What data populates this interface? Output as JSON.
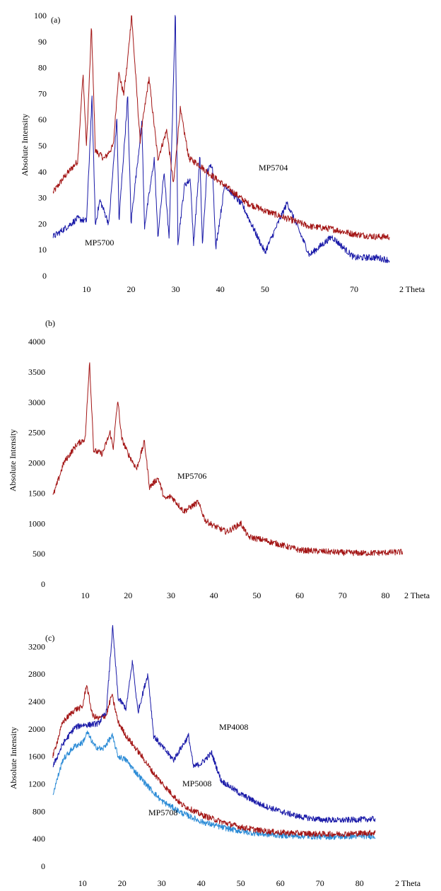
{
  "chart_data": [
    {
      "type": "line",
      "panel_label": "(a)",
      "ylabel": "Absolute Intensity",
      "xlabel": "2 Theta",
      "xlim": [
        2,
        83
      ],
      "ylim": [
        0,
        100
      ],
      "x_ticks": [
        "10",
        "20",
        "30",
        "40",
        "50",
        "70"
      ],
      "y_ticks": [
        "0",
        "10",
        "20",
        "30",
        "40",
        "50",
        "60",
        "70",
        "80",
        "90",
        "100"
      ],
      "grid": false,
      "series": [
        {
          "name": "MP5704",
          "color": "#a31515",
          "x": [
            2.5,
            5,
            8,
            9.2,
            10,
            11.1,
            12,
            14,
            16,
            17.2,
            18.3,
            19,
            20.1,
            22,
            24,
            26,
            28,
            29.5,
            31,
            33,
            35,
            37,
            40,
            43,
            46,
            50,
            55,
            60,
            65,
            70,
            75,
            78
          ],
          "y": [
            32,
            38,
            44,
            77,
            50,
            95,
            48,
            45,
            50,
            78,
            70,
            79,
            100,
            52,
            76,
            45,
            56,
            35,
            64,
            45,
            43,
            40,
            36,
            32,
            28,
            25,
            22,
            19,
            18,
            16,
            15,
            15
          ]
        },
        {
          "name": "MP5700",
          "color": "#1a1aa8",
          "x": [
            2.5,
            5,
            8,
            10,
            11.2,
            12,
            13,
            15,
            16.8,
            17.3,
            19.2,
            20,
            22.4,
            23,
            25.2,
            26,
            27.4,
            28.5,
            29.9,
            30.5,
            32,
            33.3,
            34,
            35.4,
            36,
            37,
            38.2,
            39,
            41,
            45,
            50,
            55,
            60,
            65,
            70,
            75,
            78
          ],
          "y": [
            15,
            18,
            22,
            21,
            68,
            20,
            29,
            20,
            60,
            22,
            68,
            21,
            59,
            19,
            45,
            15,
            40,
            14,
            100,
            13,
            35,
            37,
            12,
            45,
            12,
            40,
            43,
            11,
            35,
            27,
            9,
            28,
            8,
            15,
            7,
            7,
            6
          ]
        }
      ]
    },
    {
      "type": "line",
      "panel_label": "(b)",
      "ylabel": "Absolute Intensity",
      "xlabel": "2 Theta",
      "xlim": [
        2,
        87
      ],
      "ylim": [
        0,
        4000
      ],
      "x_ticks": [
        "10",
        "20",
        "30",
        "40",
        "50",
        "60",
        "70",
        "80"
      ],
      "y_ticks": [
        "0",
        "500",
        "1000",
        "1500",
        "2000",
        "2500",
        "3000",
        "3500",
        "4000"
      ],
      "grid": false,
      "series": [
        {
          "name": "MP5706",
          "color": "#a31515",
          "x": [
            2.5,
            5,
            8,
            10,
            11,
            12,
            14,
            15.8,
            16.5,
            17.6,
            18.5,
            20,
            22,
            23.8,
            25,
            27,
            28.5,
            30,
            33,
            36.3,
            38,
            40,
            43,
            46.3,
            48,
            52,
            57,
            60,
            65,
            70,
            75,
            80,
            84
          ],
          "y": [
            1450,
            2000,
            2300,
            2400,
            3650,
            2200,
            2150,
            2500,
            2250,
            3030,
            2400,
            2150,
            1900,
            2350,
            1600,
            1750,
            1400,
            1450,
            1200,
            1350,
            1050,
            960,
            860,
            1000,
            780,
            720,
            620,
            560,
            540,
            520,
            510,
            520,
            530
          ]
        }
      ]
    },
    {
      "type": "line",
      "panel_label": "(c)",
      "ylabel": "Absolute Intensity",
      "xlabel": "2 Theta",
      "xlim": [
        2,
        87
      ],
      "ylim": [
        0,
        3400
      ],
      "x_ticks": [
        "10",
        "20",
        "30",
        "40",
        "50",
        "60",
        "70",
        "80"
      ],
      "y_ticks": [
        "0",
        "400",
        "800",
        "1200",
        "1600",
        "2000",
        "2400",
        "2800",
        "3200"
      ],
      "grid": false,
      "series": [
        {
          "name": "MP4008",
          "color": "#1a1aa8",
          "x": [
            2.5,
            5,
            8,
            10,
            11.5,
            14,
            16,
            17.6,
            19,
            21,
            22.6,
            24,
            26.5,
            28,
            30,
            33,
            36.8,
            38,
            40,
            42.6,
            45,
            50,
            55,
            60,
            65,
            70,
            75,
            80,
            84
          ],
          "y": [
            1450,
            1780,
            2020,
            2060,
            2060,
            2080,
            2250,
            3480,
            2450,
            2300,
            2980,
            2250,
            2800,
            1900,
            1750,
            1550,
            1900,
            1450,
            1500,
            1650,
            1250,
            1050,
            900,
            800,
            720,
            680,
            670,
            680,
            690
          ]
        },
        {
          "name": "MP5008",
          "color": "#a31515",
          "x": [
            2.5,
            5,
            8,
            10,
            11,
            12.5,
            14,
            16,
            17.4,
            19,
            21,
            23,
            25,
            28,
            31,
            35,
            40,
            45,
            50,
            55,
            60,
            65,
            70,
            75,
            80,
            84
          ],
          "y": [
            1600,
            2100,
            2280,
            2320,
            2650,
            2200,
            2150,
            2200,
            2500,
            2100,
            1900,
            1750,
            1600,
            1350,
            1150,
            900,
            750,
            650,
            570,
            520,
            490,
            480,
            470,
            470,
            480,
            490
          ]
        },
        {
          "name": "MP5708",
          "color": "#2b8bd6",
          "x": [
            2.5,
            5,
            8,
            10,
            11.2,
            13,
            15,
            17.5,
            19,
            21,
            23,
            26,
            30,
            35,
            40,
            45,
            50,
            55,
            60,
            65,
            70,
            75,
            80,
            84
          ],
          "y": [
            1050,
            1550,
            1750,
            1800,
            1950,
            1750,
            1700,
            1900,
            1600,
            1550,
            1400,
            1200,
            950,
            780,
            650,
            570,
            510,
            470,
            450,
            440,
            430,
            430,
            440,
            440
          ]
        }
      ]
    }
  ]
}
